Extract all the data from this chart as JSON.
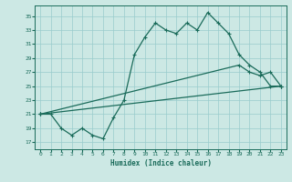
{
  "title": "",
  "xlabel": "Humidex (Indice chaleur)",
  "bg_color": "#cce8e4",
  "grid_color": "#99cccc",
  "line_color": "#1a6b5a",
  "xlim": [
    -0.5,
    23.5
  ],
  "ylim": [
    16,
    36.5
  ],
  "xticks": [
    0,
    1,
    2,
    3,
    4,
    5,
    6,
    7,
    8,
    9,
    10,
    11,
    12,
    13,
    14,
    15,
    16,
    17,
    18,
    19,
    20,
    21,
    22,
    23
  ],
  "yticks": [
    17,
    19,
    21,
    23,
    25,
    27,
    29,
    31,
    33,
    35
  ],
  "line1_x": [
    0,
    1,
    2,
    3,
    4,
    5,
    6,
    7,
    8,
    9,
    10,
    11,
    12,
    13,
    14,
    15,
    16,
    17,
    18,
    19,
    20,
    21,
    22,
    23
  ],
  "line1_y": [
    21,
    21,
    19,
    18,
    19,
    18,
    17.5,
    20.5,
    23,
    29.5,
    32,
    34,
    33,
    32.5,
    34,
    33,
    35.5,
    34,
    32.5,
    29.5,
    28,
    27,
    25,
    25
  ],
  "line2_x": [
    0,
    19,
    20,
    21,
    22,
    23
  ],
  "line2_y": [
    21,
    28,
    27,
    26.5,
    27,
    25
  ],
  "line3_x": [
    0,
    23
  ],
  "line3_y": [
    21,
    25
  ]
}
